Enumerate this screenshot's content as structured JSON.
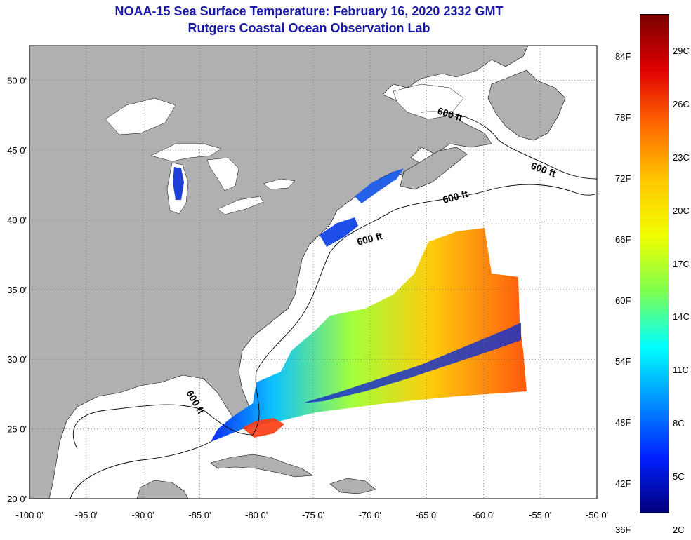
{
  "title": {
    "line1": "NOAA-15 Sea Surface Temperature:  February 16, 2020 2332 GMT",
    "line2": "Rutgers Coastal Ocean Observation Lab",
    "color": "#1a1aa8"
  },
  "map": {
    "lon_range": [
      -100,
      -50
    ],
    "lat_range": [
      20,
      52.5
    ],
    "lon_ticks": [
      {
        "lon": -100,
        "label": "-100 0'"
      },
      {
        "lon": -95,
        "label": "-95 0'"
      },
      {
        "lon": -90,
        "label": "-90 0'"
      },
      {
        "lon": -85,
        "label": "-85 0'"
      },
      {
        "lon": -80,
        "label": "-80 0'"
      },
      {
        "lon": -75,
        "label": "-75 0'"
      },
      {
        "lon": -70,
        "label": "-70 0'"
      },
      {
        "lon": -65,
        "label": "-65 0'"
      },
      {
        "lon": -60,
        "label": "-60 0'"
      },
      {
        "lon": -55,
        "label": "-55 0'"
      },
      {
        "lon": -50,
        "label": "-50 0'"
      }
    ],
    "lat_ticks": [
      {
        "lat": 20,
        "label": "20 0'"
      },
      {
        "lat": 25,
        "label": "25 0'"
      },
      {
        "lat": 30,
        "label": "30 0'"
      },
      {
        "lat": 35,
        "label": "35 0'"
      },
      {
        "lat": 40,
        "label": "40 0'"
      },
      {
        "lat": 45,
        "label": "45 0'"
      },
      {
        "lat": 50,
        "label": "50 0'"
      }
    ],
    "contour_label": "600 ft",
    "land_color": "#b0b0b0",
    "ocean_color": "#ffffff",
    "grid": "dotted"
  },
  "colorbar": {
    "fahrenheit": [
      "84F",
      "78F",
      "72F",
      "66F",
      "60F",
      "54F",
      "48F",
      "42F",
      "36F"
    ],
    "celsius": [
      "29C",
      "26C",
      "23C",
      "20C",
      "17C",
      "14C",
      "11C",
      "8C",
      "5C",
      "2C"
    ],
    "colors": [
      "#7a0000",
      "#e00000",
      "#ff6a00",
      "#ffc800",
      "#f0ff00",
      "#7dff50",
      "#00ffff",
      "#0090ff",
      "#0020ff",
      "#00007a"
    ]
  }
}
